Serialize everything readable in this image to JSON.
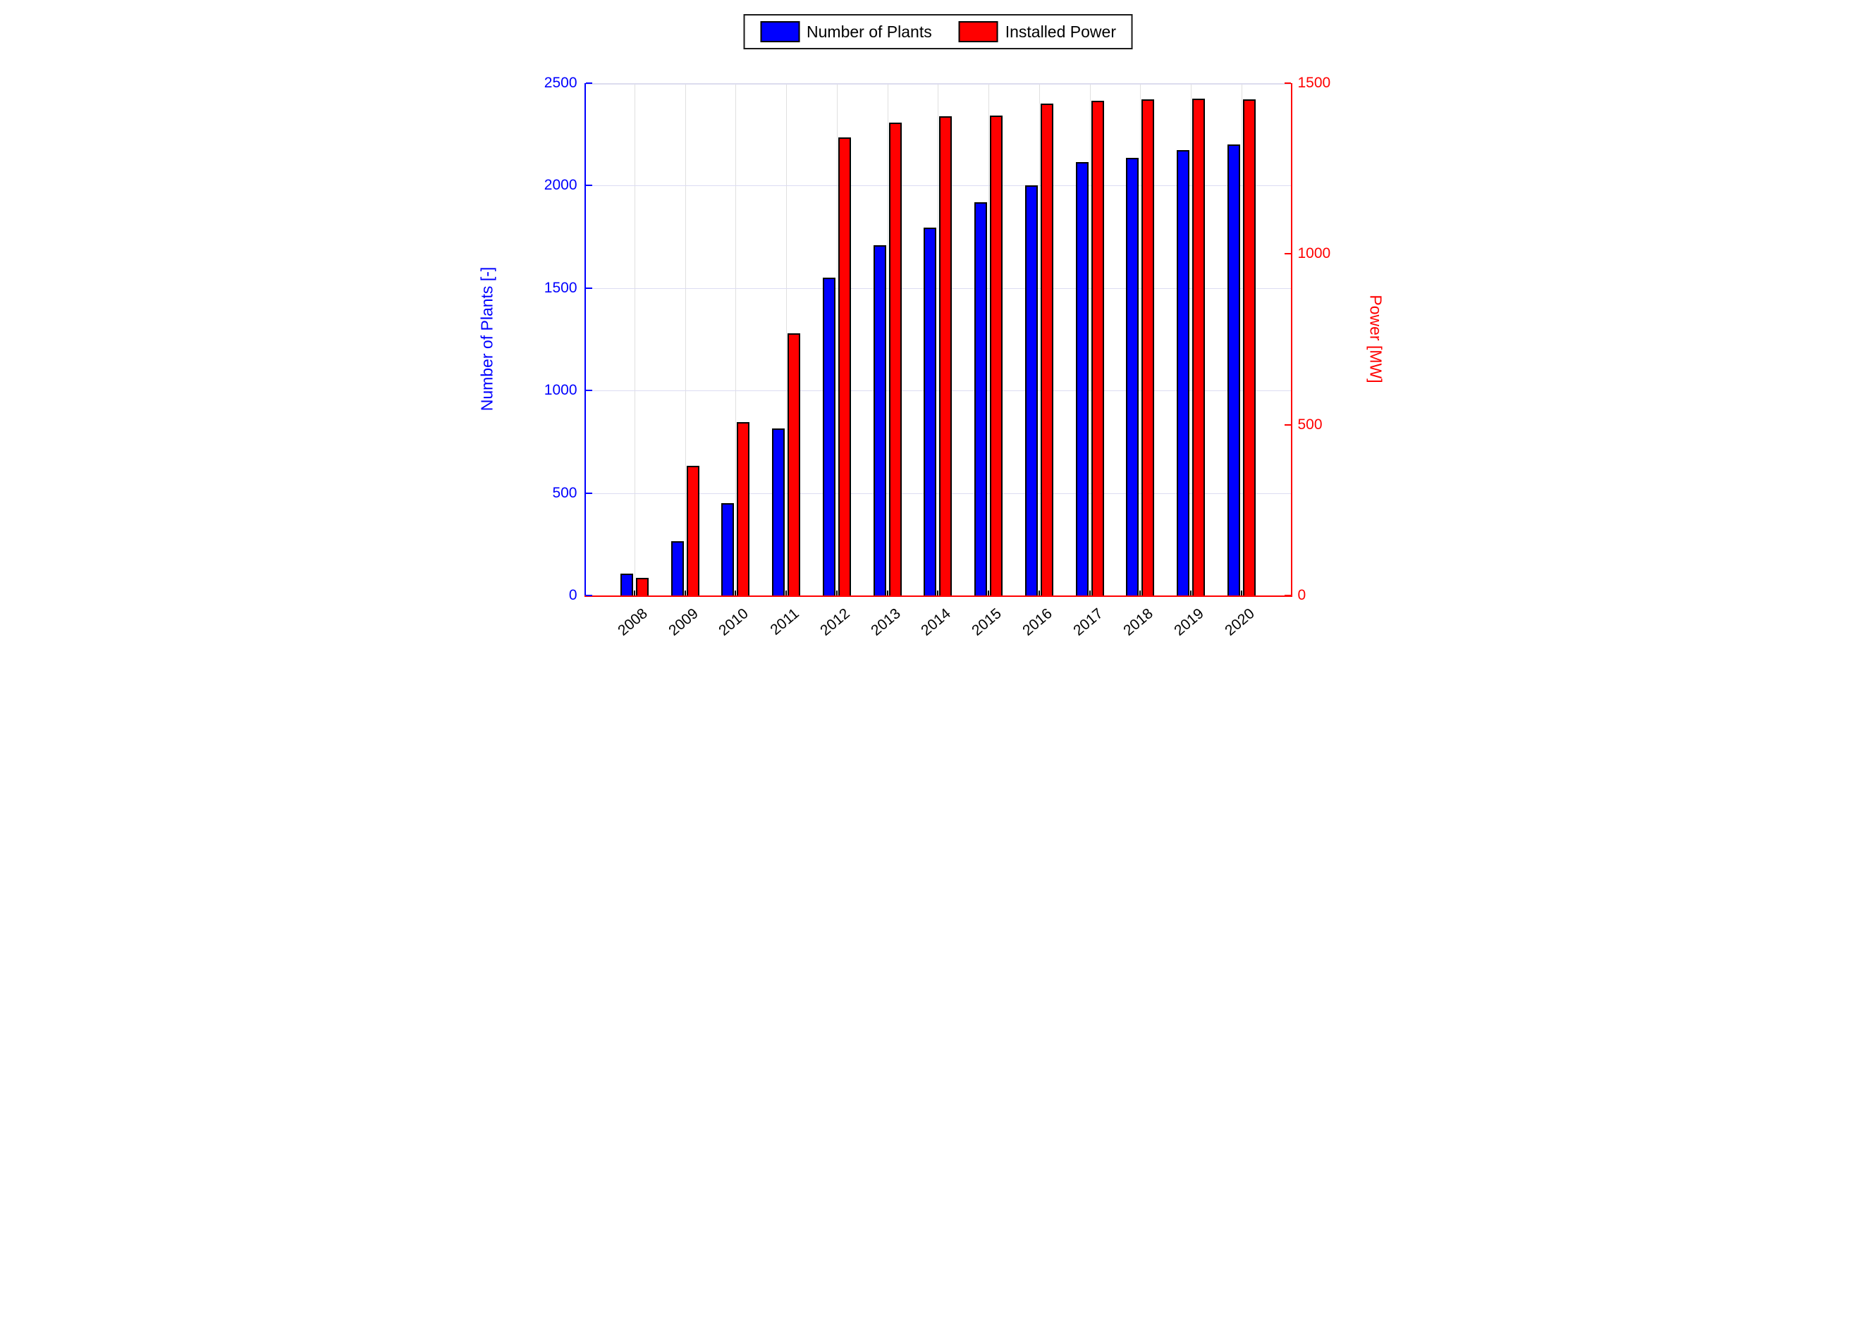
{
  "chart_data": {
    "type": "bar",
    "title": "",
    "categories": [
      "2008",
      "2009",
      "2010",
      "2011",
      "2012",
      "2013",
      "2014",
      "2015",
      "2016",
      "2017",
      "2018",
      "2019",
      "2020"
    ],
    "series": [
      {
        "name": "Number of Plants",
        "axis": "left",
        "color": "#0000ff",
        "values": [
          105,
          265,
          450,
          815,
          1550,
          1710,
          1795,
          1920,
          2000,
          2115,
          2135,
          2175,
          2200
        ]
      },
      {
        "name": "Installed Power",
        "axis": "right",
        "color": "#ff0000",
        "values": [
          52,
          380,
          508,
          768,
          1342,
          1385,
          1404,
          1406,
          1440,
          1449,
          1453,
          1455,
          1452
        ]
      }
    ],
    "left_axis": {
      "label": "Number of Plants [-]",
      "min": 0,
      "max": 2500,
      "ticks": [
        0,
        500,
        1000,
        1500,
        2000,
        2500
      ],
      "color": "#0000ff"
    },
    "right_axis": {
      "label": "Power [MW]",
      "min": 0,
      "max": 1500,
      "ticks": [
        0,
        500,
        1000,
        1500
      ],
      "color": "#ff0000"
    },
    "x_axis": {
      "tick_rotation": -40,
      "color": "#000000"
    },
    "legend": {
      "position": "top",
      "entries": [
        "Number of Plants",
        "Installed Power"
      ]
    },
    "grid": {
      "horizontal": true,
      "vertical": true
    }
  }
}
